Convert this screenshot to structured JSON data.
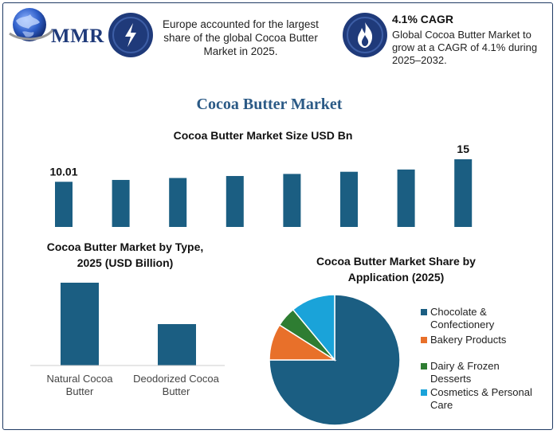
{
  "header": {
    "logo_text": "MMR",
    "info_1": "Europe accounted for the largest share of the global Cocoa Butter Market in 2025.",
    "info_1_icon": "lightning-icon",
    "info_2_title": "4.1% CAGR",
    "info_2_text": "Global Cocoa Butter Market to grow at a CAGR of 4.1% during 2025–2032.",
    "info_2_icon": "flame-icon"
  },
  "title": "Cocoa Butter Market",
  "colors": {
    "bar": "#1b5e82",
    "accent": "#2b5a86",
    "icon_circle": "#1f3a7a",
    "pie": [
      "#1b5e82",
      "#e8702a",
      "#2e7d32",
      "#1aa3d9"
    ]
  },
  "chart_data": [
    {
      "type": "bar",
      "title": "Cocoa Butter Market Size USD Bn",
      "categories": [
        "",
        "",
        "",
        "",
        "",
        "",
        "",
        ""
      ],
      "values": [
        10.01,
        10.42,
        10.85,
        11.29,
        11.75,
        12.23,
        12.73,
        15
      ],
      "data_labels": [
        "10.01",
        "",
        "",
        "",
        "",
        "",
        "",
        "15"
      ],
      "ylim": [
        0,
        15
      ]
    },
    {
      "type": "bar",
      "title": "Cocoa Butter Market by Type, 2025 (USD Billion)",
      "categories": [
        "Natural Cocoa Butter",
        "Deodorized Cocoa Butter"
      ],
      "values": [
        6.2,
        3.1
      ],
      "ylim": [
        0,
        6.2
      ]
    },
    {
      "type": "pie",
      "title": "Cocoa Butter Market Share by Application (2025)",
      "categories": [
        "Chocolate & Confectionery",
        "Bakery Products",
        "Dairy & Frozen Desserts",
        "Cosmetics & Personal Care"
      ],
      "values": [
        75,
        9,
        5,
        11
      ],
      "legend": "right"
    }
  ]
}
